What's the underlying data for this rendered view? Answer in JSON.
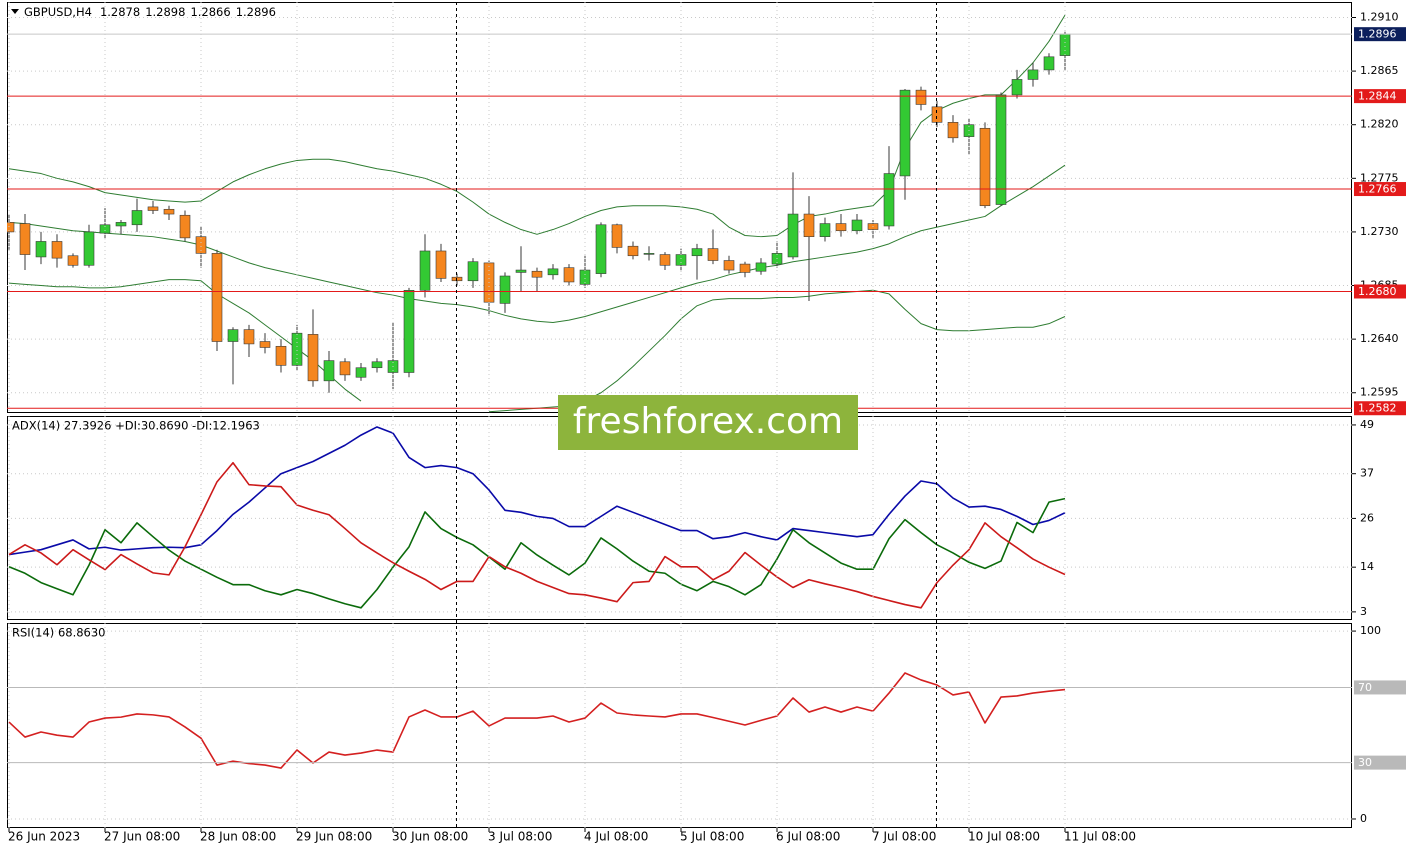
{
  "chart_data": [
    {
      "type": "candlestick",
      "title": "GBPUSD,H4",
      "watermark": "freshforex.com",
      "categories": [
        "26 Jun 2023",
        null,
        null,
        null,
        null,
        null,
        "27 Jun 08:00",
        null,
        null,
        null,
        null,
        null,
        "28 Jun 08:00",
        null,
        null,
        null,
        null,
        null,
        "29 Jun 08:00",
        null,
        null,
        null,
        null,
        null,
        "30 Jun 08:00",
        null,
        null,
        null,
        null,
        null,
        "3 Jul 08:00",
        null,
        null,
        null,
        null,
        null,
        "4 Jul 08:00",
        null,
        null,
        null,
        null,
        null,
        "5 Jul 08:00",
        null,
        null,
        null,
        null,
        null,
        "6 Jul 08:00",
        null,
        null,
        null,
        null,
        null,
        "7 Jul 08:00",
        null,
        null,
        null,
        null,
        null,
        "10 Jul 08:00",
        null,
        null,
        null,
        null,
        null,
        "11 Jul 08:00"
      ],
      "open": [
        1.2738,
        1.2737,
        1.2709,
        1.2722,
        1.271,
        1.2702,
        1.2729,
        1.2735,
        1.2736,
        1.2751,
        1.2749,
        1.2744,
        1.2726,
        1.2712,
        1.2638,
        1.2648,
        1.2638,
        1.2634,
        1.2618,
        1.2644,
        1.2605,
        1.2621,
        1.2608,
        1.2616,
        1.2612,
        1.2612,
        1.2681,
        1.2714,
        1.2692,
        1.2689,
        1.2704,
        1.267,
        1.2696,
        1.2697,
        1.2694,
        1.27,
        1.2686,
        1.2695,
        1.2736,
        1.2718,
        1.2712,
        1.2711,
        1.2702,
        1.271,
        1.2716,
        1.2706,
        1.2703,
        1.2697,
        1.2703,
        1.2709,
        1.2745,
        1.2726,
        1.2737,
        1.2731,
        1.2737,
        1.2735,
        1.2777,
        1.2849,
        1.2835,
        1.2822,
        1.281,
        1.2817,
        1.2753,
        1.2845,
        1.2858,
        1.2866,
        1.2878
      ],
      "high": [
        1.2745,
        1.2745,
        1.273,
        1.2728,
        1.2712,
        1.2736,
        1.275,
        1.274,
        1.2758,
        1.2756,
        1.2752,
        1.2748,
        1.2735,
        1.2715,
        1.265,
        1.2652,
        1.2645,
        1.264,
        1.2652,
        1.2665,
        1.263,
        1.2624,
        1.262,
        1.2624,
        1.2654,
        1.2683,
        1.2728,
        1.272,
        1.2695,
        1.2708,
        1.2706,
        1.2696,
        1.2718,
        1.27,
        1.2703,
        1.2703,
        1.271,
        1.2738,
        1.2737,
        1.2722,
        1.2718,
        1.2713,
        1.2716,
        1.272,
        1.2732,
        1.271,
        1.2705,
        1.2708,
        1.2722,
        1.278,
        1.276,
        1.2742,
        1.2745,
        1.2745,
        1.274,
        1.2802,
        1.285,
        1.2852,
        1.284,
        1.2828,
        1.2825,
        1.2822,
        1.2847,
        1.2866,
        1.2872,
        1.288,
        1.2898
      ],
      "low": [
        1.2715,
        1.2698,
        1.2703,
        1.27,
        1.27,
        1.27,
        1.2724,
        1.2728,
        1.273,
        1.2745,
        1.274,
        1.2722,
        1.27,
        1.263,
        1.2602,
        1.2625,
        1.2628,
        1.2612,
        1.2614,
        1.26,
        1.2595,
        1.2605,
        1.2605,
        1.2612,
        1.2598,
        1.2608,
        1.2675,
        1.2688,
        1.2685,
        1.2683,
        1.266,
        1.2662,
        1.268,
        1.268,
        1.269,
        1.2685,
        1.2683,
        1.2692,
        1.2712,
        1.2707,
        1.2706,
        1.2698,
        1.2697,
        1.269,
        1.2703,
        1.2695,
        1.2692,
        1.2694,
        1.27,
        1.2707,
        1.2672,
        1.2722,
        1.2726,
        1.2728,
        1.2725,
        1.2732,
        1.2757,
        1.2832,
        1.2818,
        1.2805,
        1.2795,
        1.275,
        1.2752,
        1.2842,
        1.2852,
        1.2862,
        1.2866
      ],
      "close": [
        1.273,
        1.2711,
        1.2722,
        1.2708,
        1.2702,
        1.273,
        1.2736,
        1.2738,
        1.2748,
        1.2748,
        1.2745,
        1.2725,
        1.2712,
        1.2638,
        1.2648,
        1.2636,
        1.2633,
        1.2618,
        1.2645,
        1.2605,
        1.2622,
        1.261,
        1.2616,
        1.2621,
        1.2622,
        1.2681,
        1.2714,
        1.2691,
        1.2689,
        1.2705,
        1.2671,
        1.2693,
        1.2698,
        1.2692,
        1.2699,
        1.2688,
        1.2698,
        1.2736,
        1.2717,
        1.271,
        1.2712,
        1.2702,
        1.2711,
        1.2716,
        1.2706,
        1.2698,
        1.2696,
        1.2704,
        1.2712,
        1.2745,
        1.2726,
        1.2737,
        1.2731,
        1.274,
        1.2732,
        1.2779,
        1.2849,
        1.2837,
        1.2822,
        1.2809,
        1.282,
        1.2752,
        1.2845,
        1.2858,
        1.2866,
        1.2877,
        1.2896
      ],
      "up_color": "#33c933",
      "down_color": "#f5861f",
      "edge_color": "#3a3a3a",
      "bands": [
        {
          "color": "#2f7d32",
          "values": [
            1.2783,
            1.2781,
            1.2779,
            1.2775,
            1.2772,
            1.2768,
            1.2763,
            1.2761,
            1.2759,
            1.2757,
            1.2756,
            1.2755,
            1.2756,
            1.2764,
            1.2772,
            1.2778,
            1.2783,
            1.2787,
            1.279,
            1.2791,
            1.2791,
            1.2789,
            1.2786,
            1.2783,
            1.2781,
            1.2778,
            1.2775,
            1.277,
            1.2764,
            1.2755,
            1.2745,
            1.2738,
            1.2732,
            1.2728,
            1.2732,
            1.2737,
            1.2743,
            1.2748,
            1.2751,
            1.2752,
            1.2752,
            1.2752,
            1.2751,
            1.2749,
            1.2745,
            1.2734,
            1.2727,
            1.2726,
            1.2727,
            1.2736,
            1.2743,
            1.2745,
            1.2748,
            1.275,
            1.2752,
            1.2765,
            1.28,
            1.2822,
            1.2832,
            1.2838,
            1.2842,
            1.2845,
            1.2845,
            1.2858,
            1.2872,
            1.289,
            1.2912
          ]
        },
        {
          "color": "#2f7d32",
          "values": [
            1.2738,
            1.2737,
            1.2735,
            1.2733,
            1.2731,
            1.273,
            1.2729,
            1.2728,
            1.2727,
            1.2726,
            1.2724,
            1.2722,
            1.2719,
            1.2714,
            1.2709,
            1.2704,
            1.27,
            1.2697,
            1.2694,
            1.2691,
            1.2688,
            1.2685,
            1.2682,
            1.2679,
            1.2677,
            1.2674,
            1.2672,
            1.267,
            1.2669,
            1.2667,
            1.2664,
            1.266,
            1.2657,
            1.2655,
            1.2654,
            1.2656,
            1.2659,
            1.2663,
            1.2667,
            1.2671,
            1.2675,
            1.2679,
            1.2683,
            1.2687,
            1.269,
            1.2694,
            1.2697,
            1.27,
            1.2702,
            1.2705,
            1.2707,
            1.2709,
            1.2711,
            1.2713,
            1.2716,
            1.272,
            1.2726,
            1.2731,
            1.2734,
            1.2737,
            1.274,
            1.2743,
            1.2752,
            1.276,
            1.2768,
            1.2777,
            1.2786
          ]
        },
        {
          "color": "#2f7d32",
          "values": [
            1.2687,
            1.2686,
            1.2685,
            1.2684,
            1.2684,
            1.2683,
            1.2683,
            1.2684,
            1.2686,
            1.2688,
            1.269,
            1.269,
            1.2689,
            1.2678,
            1.267,
            1.2662,
            1.2652,
            1.2642,
            1.2632,
            1.2622,
            1.261,
            1.2598,
            1.2588,
            null,
            null,
            null,
            null,
            null,
            null,
            null,
            1.2579,
            1.258,
            1.2581,
            1.2582,
            1.2583,
            1.2584,
            1.2588,
            1.2595,
            1.2605,
            1.2617,
            1.263,
            1.2643,
            1.2657,
            1.2668,
            1.2673,
            1.2674,
            1.2674,
            1.2674,
            1.2675,
            1.2675,
            1.2676,
            1.2678,
            1.2679,
            1.268,
            1.2681,
            1.2678,
            1.2665,
            1.2653,
            1.2648,
            1.2647,
            1.2647,
            1.2648,
            1.2649,
            1.265,
            1.265,
            1.2653,
            1.2659
          ]
        }
      ],
      "levels": [
        1.2844,
        1.2766,
        {
          "value": 1.268,
          "label": "1.2680"
        },
        1.2582
      ],
      "level_color": "#e31a1a",
      "last_color": "#0c1f5c",
      "ylim": [
        1.2578,
        1.2923
      ],
      "yticks": [
        {
          "value": 1.291,
          "label": "1.2910"
        },
        1.2865,
        {
          "value": 1.282,
          "label": "1.2820"
        },
        1.2775,
        {
          "value": 1.273,
          "label": "1.2730"
        },
        1.2685,
        {
          "value": 1.264,
          "label": "1.2640"
        },
        1.2595
      ],
      "grid": true
    },
    {
      "type": "line",
      "title": "ADX(14) 27.3926 +DI:30.8690 -DI:12.1963",
      "series": [
        {
          "color": "#0a0aa8",
          "values": [
            17.1,
            17.7,
            18.3,
            19.5,
            20.7,
            18.5,
            18.9,
            18.2,
            18.5,
            18.8,
            18.9,
            18.8,
            19.5,
            23,
            27,
            30,
            33.5,
            37,
            38.5,
            40,
            42,
            44,
            46.5,
            48.5,
            47,
            41,
            38.5,
            39,
            38.5,
            37,
            33,
            28,
            27.5,
            26.5,
            26,
            24,
            24,
            26.5,
            29,
            27.5,
            26,
            24.5,
            23,
            23,
            21,
            21.5,
            22.5,
            21.5,
            20.7,
            23.5,
            23,
            22.5,
            22,
            21.5,
            22,
            27,
            31.5,
            35.2,
            34.5,
            31,
            28.8,
            29,
            28.2,
            26.5,
            24.5,
            25.5,
            27.3926
          ]
        },
        {
          "color": "#0b6b0b",
          "values": [
            14.1,
            12.5,
            10.2,
            8.7,
            7.2,
            14.5,
            23.2,
            20,
            24.9,
            21.5,
            18.2,
            15.5,
            13.5,
            11.5,
            9.7,
            9.7,
            8.2,
            7.2,
            8.5,
            7.5,
            6.2,
            5,
            4,
            8.5,
            14,
            19,
            27.6,
            23.5,
            21.3,
            19.5,
            16.5,
            13.5,
            20,
            17,
            14.5,
            12.1,
            15,
            21.2,
            18.5,
            15.5,
            13,
            12.5,
            9.8,
            8.2,
            10.5,
            9.2,
            7.2,
            9.7,
            16,
            23.2,
            20,
            17.5,
            15,
            13.5,
            13.5,
            21,
            25.7,
            22.5,
            19.5,
            17.5,
            15.2,
            13.7,
            15.5,
            25,
            22.5,
            30,
            30.869
          ]
        },
        {
          "color": "#cc1a1a",
          "values": [
            17.1,
            19.5,
            17.5,
            14.6,
            18.3,
            15.8,
            13.4,
            17.1,
            14.8,
            12.6,
            12.1,
            19,
            26.9,
            35,
            39.7,
            34.3,
            34,
            33.8,
            29.3,
            28,
            26.9,
            23.5,
            20,
            17.5,
            15.1,
            13,
            11,
            8.5,
            10.5,
            10.5,
            16.6,
            14.1,
            12.5,
            10.5,
            9,
            7.5,
            7.2,
            6.4,
            5.5,
            10.2,
            10.5,
            16.6,
            14.1,
            14.1,
            10.9,
            13,
            17.6,
            14.5,
            11.6,
            9,
            10.9,
            9.9,
            9,
            8,
            6.8,
            5.8,
            4.8,
            4,
            10.2,
            14.5,
            18.3,
            24.9,
            21.5,
            18.8,
            16,
            14,
            12.1963
          ]
        }
      ],
      "ylim": [
        1,
        51.2
      ],
      "yticks": [
        49,
        37,
        26,
        14,
        3
      ],
      "grid": true
    },
    {
      "type": "line",
      "title": "RSI(14) 68.8630",
      "series": [
        {
          "color": "#d42020",
          "values": [
            51.6,
            43.6,
            46.3,
            44.6,
            43.6,
            51.6,
            53.7,
            54.2,
            55.9,
            55.4,
            54.3,
            49,
            43,
            28.7,
            30.8,
            29.5,
            28.7,
            27.1,
            36.7,
            29.8,
            35.6,
            34,
            35.1,
            36.7,
            35.6,
            54.3,
            58,
            54.3,
            54.3,
            57.4,
            49.5,
            53.7,
            53.7,
            53.7,
            54.8,
            51.6,
            53.7,
            61.7,
            56.4,
            55.4,
            54.8,
            54.3,
            55.9,
            55.9,
            54,
            52,
            50,
            52.5,
            54.8,
            64.4,
            56.9,
            59.6,
            56.9,
            59.6,
            57.4,
            67,
            77.7,
            74,
            71.3,
            66,
            67.6,
            51.1,
            64.9,
            65.5,
            67,
            68,
            68.863
          ]
        }
      ],
      "levels": [
        70,
        30
      ],
      "level_color": "#b9b9b9",
      "ylim": [
        -4.8,
        104.3
      ],
      "yticks": [
        100,
        0
      ],
      "grid": true
    }
  ]
}
